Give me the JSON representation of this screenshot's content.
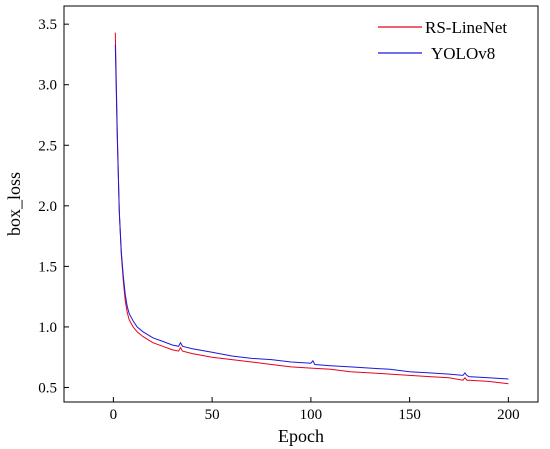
{
  "chart_data": {
    "type": "line",
    "title": "",
    "xlabel": "Epoch",
    "ylabel": "box_loss",
    "xlim": [
      -25,
      215
    ],
    "ylim": [
      0.38,
      3.65
    ],
    "x_ticks": [
      0,
      50,
      100,
      150,
      200
    ],
    "y_ticks": [
      0.5,
      1.0,
      1.5,
      2.0,
      2.5,
      3.0,
      3.5
    ],
    "x_tick_labels": [
      "0",
      "50",
      "100",
      "150",
      "200"
    ],
    "y_tick_labels": [
      "0.5",
      "1.0",
      "1.5",
      "2.0",
      "2.5",
      "3.0",
      "3.5"
    ],
    "grid": false,
    "legend_position": "top-right",
    "series": [
      {
        "name": "RS-LineNet",
        "color": "#e8001c",
        "x": [
          1,
          2,
          3,
          4,
          5,
          6,
          7,
          8,
          10,
          12,
          15,
          20,
          25,
          30,
          33,
          34,
          35,
          40,
          50,
          60,
          70,
          80,
          90,
          100,
          110,
          120,
          130,
          140,
          150,
          160,
          170,
          177,
          178,
          179,
          180,
          190,
          200
        ],
        "values": [
          3.43,
          2.6,
          1.95,
          1.6,
          1.38,
          1.22,
          1.12,
          1.06,
          1.0,
          0.96,
          0.92,
          0.87,
          0.84,
          0.81,
          0.8,
          0.83,
          0.8,
          0.78,
          0.75,
          0.73,
          0.71,
          0.69,
          0.67,
          0.66,
          0.65,
          0.63,
          0.62,
          0.61,
          0.6,
          0.59,
          0.58,
          0.56,
          0.58,
          0.56,
          0.56,
          0.55,
          0.53
        ]
      },
      {
        "name": "YOLOv8",
        "color": "#1a1adc",
        "x": [
          1,
          2,
          3,
          4,
          5,
          6,
          7,
          8,
          10,
          12,
          15,
          20,
          25,
          30,
          33,
          34,
          35,
          40,
          50,
          60,
          70,
          80,
          90,
          100,
          101,
          102,
          110,
          120,
          130,
          140,
          150,
          160,
          170,
          177,
          178,
          179,
          180,
          190,
          200
        ],
        "values": [
          3.33,
          2.55,
          1.95,
          1.62,
          1.42,
          1.27,
          1.17,
          1.11,
          1.05,
          1.0,
          0.96,
          0.91,
          0.88,
          0.85,
          0.84,
          0.87,
          0.84,
          0.82,
          0.79,
          0.76,
          0.74,
          0.73,
          0.71,
          0.7,
          0.72,
          0.69,
          0.68,
          0.67,
          0.66,
          0.65,
          0.63,
          0.62,
          0.61,
          0.6,
          0.62,
          0.6,
          0.59,
          0.58,
          0.57
        ]
      }
    ]
  }
}
